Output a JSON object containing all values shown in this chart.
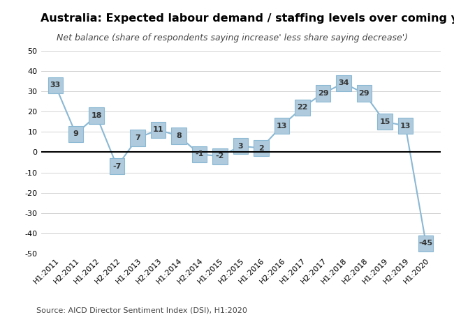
{
  "title": "Australia: Expected labour demand / staffing levels over coming year",
  "subtitle": "Net balance (share of respondents saying increase' less share saying decrease')",
  "source": "Source: AICD Director Sentiment Index (DSI), H1:2020",
  "categories": [
    "H1:2011",
    "H2:2011",
    "H1:2012",
    "H2:2012",
    "H1:2013",
    "H2:2013",
    "H1:2014",
    "H2:2014",
    "H1:2015",
    "H2:2015",
    "H1:2016",
    "H2:2016",
    "H1:2017",
    "H2:2017",
    "H1:2018",
    "H2:2018",
    "H1:2019",
    "H2:2019",
    "H1:2020"
  ],
  "values": [
    33,
    9,
    18,
    -7,
    7,
    11,
    8,
    -1,
    -2,
    3,
    2,
    13,
    22,
    29,
    34,
    29,
    15,
    13,
    -45
  ],
  "line_color": "#8BB8D4",
  "box_color": "#AECADC",
  "box_edge_color": "#8BB8D4",
  "label_color": "#333333",
  "ylim": [
    -50,
    50
  ],
  "yticks": [
    -50,
    -40,
    -30,
    -20,
    -10,
    0,
    10,
    20,
    30,
    40,
    50
  ],
  "title_fontsize": 11.5,
  "subtitle_fontsize": 9,
  "source_fontsize": 8,
  "label_fontsize": 8,
  "tick_fontsize": 8,
  "bg_color": "#ffffff",
  "grid_color": "#cccccc"
}
